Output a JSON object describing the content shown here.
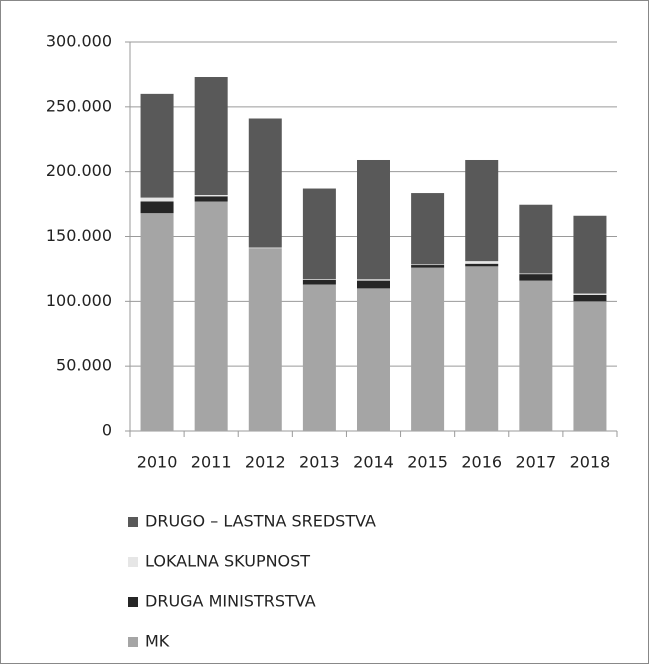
{
  "chart_data": {
    "type": "stacked_bar",
    "categories": [
      "2010",
      "2011",
      "2012",
      "2013",
      "2014",
      "2015",
      "2016",
      "2017",
      "2018"
    ],
    "series": [
      {
        "name": "MK",
        "color": "#a5a5a5",
        "values": [
          168000,
          177000,
          141000,
          113000,
          110000,
          126000,
          127000,
          116000,
          100000
        ]
      },
      {
        "name": "DRUGA MINISTRSTVA",
        "color": "#262626",
        "values": [
          9000,
          4000,
          0,
          3500,
          6000,
          2000,
          2000,
          5000,
          5000
        ]
      },
      {
        "name": "LOKALNA SKUPNOST",
        "color": "#e6e6e6",
        "values": [
          3000,
          1000,
          500,
          500,
          1000,
          500,
          2000,
          500,
          1000
        ]
      },
      {
        "name": "DRUGO – LASTNA SREDSTVA",
        "color": "#595959",
        "values": [
          80000,
          91000,
          99500,
          70000,
          92000,
          55000,
          78000,
          53000,
          60000
        ]
      }
    ],
    "ylim": [
      0,
      300000
    ],
    "yticks": [
      0,
      {
        "value": 50000,
        "label": "50.000"
      },
      {
        "value": 100000,
        "label": "100.000"
      },
      {
        "value": 150000,
        "label": "150.000"
      },
      {
        "value": 200000,
        "label": "200.000"
      },
      {
        "value": 250000,
        "label": "250.000"
      },
      {
        "value": 300000,
        "label": "300.000"
      }
    ],
    "grid": true,
    "legend": "bottom"
  }
}
